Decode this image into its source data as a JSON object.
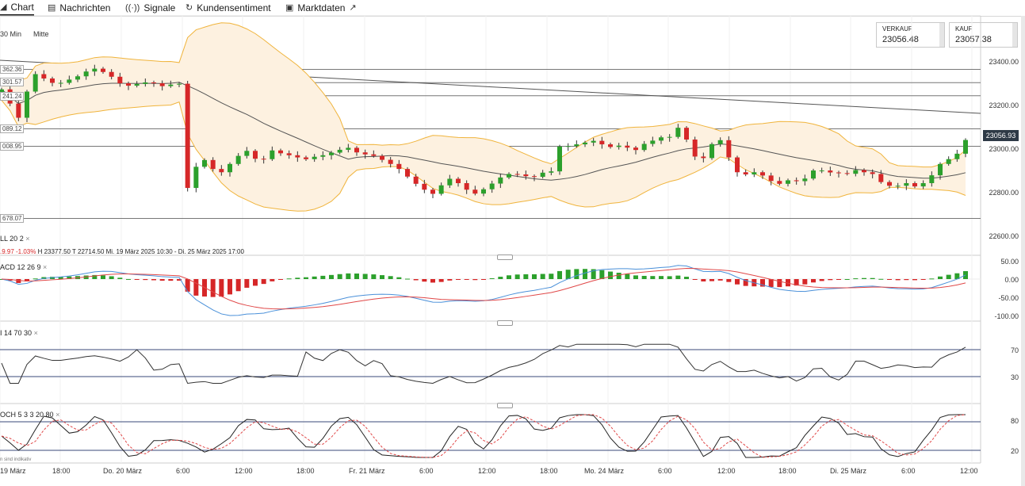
{
  "tabs": [
    {
      "label": "Chart",
      "icon": "chart-icon"
    },
    {
      "label": "Nachrichten",
      "icon": "news-icon"
    },
    {
      "label": "Signale",
      "icon": "signal-icon"
    },
    {
      "label": "Kundensentiment",
      "icon": "sentiment-icon"
    },
    {
      "label": "Marktdaten",
      "icon": "external-link-icon"
    }
  ],
  "toolbar": {
    "interval": "30 Min",
    "mode": "Mitte"
  },
  "prices": {
    "sell_label": "VERKAUF",
    "sell_value": "23056.48",
    "buy_label": "KAUF",
    "buy_value": "23057.38"
  },
  "current_price": "23056.93",
  "main_axis": {
    "ticks": [
      "23400.00",
      "23200.00",
      "23000.00",
      "22800.00",
      "22600.00"
    ]
  },
  "horizontal_labels": [
    "362.36",
    "301.57",
    "241.24",
    "089.12",
    "008.95",
    "678.07"
  ],
  "indicators": {
    "boll": {
      "label": "LL  20  2",
      "change": ".9.97   -1.03%",
      "stats": "H 23377.50    T 22714.50    Mi. 19 März 2025 10:30 - Di. 25 März 2025 17:00"
    },
    "macd": {
      "label": "ACD  12  26  9",
      "ticks": [
        "50.00",
        "0.00",
        "-50.00",
        "-100.00"
      ]
    },
    "rsi": {
      "label": "I  14  70  30",
      "ticks": [
        "70",
        "30"
      ]
    },
    "stoch": {
      "label": "OCH  5  3  3  20  80",
      "note": "n sind indikativ",
      "ticks": [
        "80",
        "20"
      ]
    }
  },
  "x_axis": {
    "labels": [
      "19 März",
      "18:00",
      "Do. 20 März",
      "6:00",
      "12:00",
      "18:00",
      "Fr. 21 März",
      "6:00",
      "12:00",
      "18:00",
      "Mo. 24 März",
      "6:00",
      "12:00",
      "18:00",
      "Di. 25 März",
      "6:00",
      "12:00"
    ]
  },
  "colors": {
    "up": "#2ca02c",
    "down": "#d62728",
    "band": "#f0b43c",
    "band_fill": "#fdf1e0",
    "ma": "#555555",
    "macd_line": "#4a90d9",
    "signal_line": "#e04848",
    "stoch_k": "#222222",
    "stoch_d": "#e04848"
  },
  "chart_data": {
    "type": "candlestick",
    "instrument_interval": "30 Min",
    "y_range": [
      22600,
      23450
    ],
    "close": [
      23270,
      23205,
      23140,
      23260,
      23340,
      23320,
      23300,
      23300,
      23315,
      23330,
      23352,
      23365,
      23350,
      23328,
      23298,
      23287,
      23295,
      23302,
      23298,
      23285,
      23292,
      23296,
      22818,
      22915,
      22946,
      22905,
      22890,
      22928,
      22965,
      22988,
      22952,
      22950,
      22990,
      22977,
      22968,
      22958,
      22950,
      22961,
      22968,
      22980,
      22993,
      23002,
      22981,
      22972,
      22965,
      22947,
      22928,
      22905,
      22870,
      22837,
      22810,
      22791,
      22830,
      22860,
      22840,
      22810,
      22792,
      22812,
      22838,
      22866,
      22882,
      22880,
      22872,
      22869,
      22888,
      22894,
      23008,
      23010,
      23018,
      23026,
      23034,
      23018,
      23006,
      23012,
      23003,
      22992,
      23020,
      23035,
      23050,
      23052,
      23094,
      23040,
      22962,
      22955,
      23019,
      23037,
      22958,
      22890,
      22880,
      22890,
      22875,
      22850,
      22837,
      22853,
      22849,
      22861,
      22898,
      22898,
      22889,
      22886,
      22883,
      22900,
      22890,
      22882,
      22845,
      22828,
      22828,
      22840,
      22825,
      22840,
      22876,
      22928,
      22950,
      22975,
      23038
    ]
  }
}
